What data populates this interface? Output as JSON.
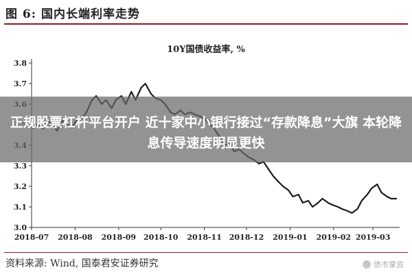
{
  "figure": {
    "title": "图 6:  国内长端利率走势",
    "source": "资料来源:   Wind,  国泰君安证券研究",
    "watermark": "债市掌资"
  },
  "overlay": {
    "headline": "正规股票杠杆平台开户 近十家中小银行接过“存款降息”大旗 本轮降息传导速度明显更快"
  },
  "colors": {
    "line": "#1a1a1a",
    "accent_rule": "#8b1a1a",
    "overlay": "#696969"
  },
  "chart_data": {
    "type": "line",
    "title": "10Y国债收益率,  %",
    "xlabel": "",
    "ylabel": "",
    "ylim": [
      3.0,
      3.8
    ],
    "yticks": [
      3.0,
      3.1,
      3.2,
      3.3,
      3.4,
      3.5,
      3.6,
      3.7,
      3.8
    ],
    "ytick_labels": [
      "3.0",
      "3.1",
      "3.2",
      "3.3",
      "3.4",
      "3.5",
      "3.6",
      "3.7",
      "3.8"
    ],
    "xticks": [
      "2018-07-01",
      "2018-08-01",
      "2018-09-01",
      "2018-10-01",
      "2018-11-01",
      "2018-12-01",
      "2019-01-01",
      "2019-02-01",
      "2019-03-01"
    ],
    "xtick_labels": [
      "2018-07",
      "2018-08",
      "2018-09",
      "2018-10",
      "2018-11",
      "2018-12",
      "2019-01",
      "2019-02",
      "2019-03"
    ],
    "xlim": [
      "2018-07-01",
      "2019-03-20"
    ],
    "grid": false,
    "series": [
      {
        "values": [
          [
            "2018-07-02",
            3.48
          ],
          [
            "2018-07-05",
            3.5
          ],
          [
            "2018-07-09",
            3.48
          ],
          [
            "2018-07-12",
            3.52
          ],
          [
            "2018-07-16",
            3.5
          ],
          [
            "2018-07-19",
            3.47
          ],
          [
            "2018-07-23",
            3.52
          ],
          [
            "2018-07-26",
            3.5
          ],
          [
            "2018-07-30",
            3.49
          ],
          [
            "2018-08-02",
            3.52
          ],
          [
            "2018-08-06",
            3.53
          ],
          [
            "2018-08-09",
            3.56
          ],
          [
            "2018-08-13",
            3.62
          ],
          [
            "2018-08-16",
            3.64
          ],
          [
            "2018-08-20",
            3.6
          ],
          [
            "2018-08-23",
            3.62
          ],
          [
            "2018-08-27",
            3.58
          ],
          [
            "2018-08-30",
            3.62
          ],
          [
            "2018-09-03",
            3.64
          ],
          [
            "2018-09-06",
            3.6
          ],
          [
            "2018-09-10",
            3.66
          ],
          [
            "2018-09-13",
            3.62
          ],
          [
            "2018-09-17",
            3.68
          ],
          [
            "2018-09-20",
            3.7
          ],
          [
            "2018-09-24",
            3.65
          ],
          [
            "2018-09-27",
            3.63
          ],
          [
            "2018-10-01",
            3.62
          ],
          [
            "2018-10-04",
            3.6
          ],
          [
            "2018-10-08",
            3.56
          ],
          [
            "2018-10-11",
            3.55
          ],
          [
            "2018-10-15",
            3.57
          ],
          [
            "2018-10-18",
            3.55
          ],
          [
            "2018-10-22",
            3.56
          ],
          [
            "2018-10-25",
            3.55
          ],
          [
            "2018-10-29",
            3.54
          ],
          [
            "2018-11-01",
            3.53
          ],
          [
            "2018-11-05",
            3.5
          ],
          [
            "2018-11-08",
            3.48
          ],
          [
            "2018-11-12",
            3.44
          ],
          [
            "2018-11-15",
            3.4
          ],
          [
            "2018-11-19",
            3.41
          ],
          [
            "2018-11-22",
            3.37
          ],
          [
            "2018-11-26",
            3.38
          ],
          [
            "2018-11-29",
            3.36
          ],
          [
            "2018-12-03",
            3.34
          ],
          [
            "2018-12-06",
            3.33
          ],
          [
            "2018-12-10",
            3.31
          ],
          [
            "2018-12-13",
            3.32
          ],
          [
            "2018-12-17",
            3.28
          ],
          [
            "2018-12-20",
            3.25
          ],
          [
            "2018-12-24",
            3.22
          ],
          [
            "2018-12-27",
            3.2
          ],
          [
            "2018-12-31",
            3.18
          ],
          [
            "2019-01-03",
            3.15
          ],
          [
            "2019-01-07",
            3.16
          ],
          [
            "2019-01-10",
            3.12
          ],
          [
            "2019-01-14",
            3.13
          ],
          [
            "2019-01-17",
            3.1
          ],
          [
            "2019-01-21",
            3.12
          ],
          [
            "2019-01-24",
            3.14
          ],
          [
            "2019-01-28",
            3.12
          ],
          [
            "2019-01-31",
            3.11
          ],
          [
            "2019-02-04",
            3.1
          ],
          [
            "2019-02-07",
            3.09
          ],
          [
            "2019-02-11",
            3.08
          ],
          [
            "2019-02-14",
            3.07
          ],
          [
            "2019-02-18",
            3.09
          ],
          [
            "2019-02-21",
            3.13
          ],
          [
            "2019-02-25",
            3.16
          ],
          [
            "2019-02-28",
            3.19
          ],
          [
            "2019-03-04",
            3.21
          ],
          [
            "2019-03-07",
            3.17
          ],
          [
            "2019-03-11",
            3.15
          ],
          [
            "2019-03-14",
            3.14
          ],
          [
            "2019-03-18",
            3.14
          ]
        ]
      }
    ]
  }
}
